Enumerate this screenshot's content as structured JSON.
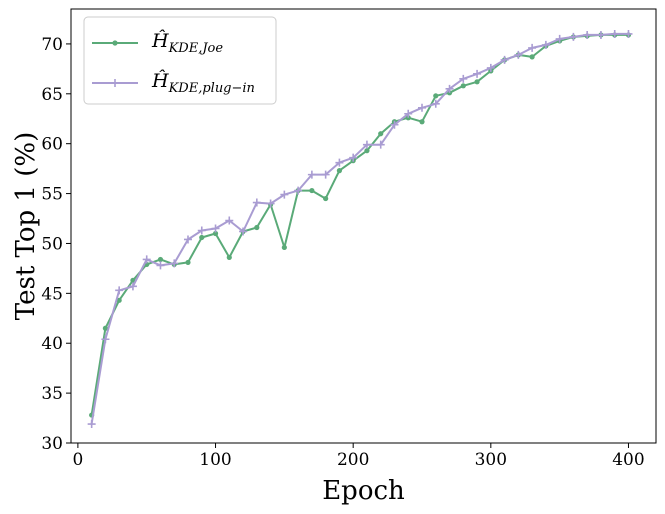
{
  "chart_data": {
    "type": "line",
    "xlabel": "Epoch",
    "ylabel": "Test Top 1 (%)",
    "xlim": [
      -5,
      420
    ],
    "ylim": [
      30,
      73.5
    ],
    "xticks": [
      0,
      100,
      200,
      300,
      400
    ],
    "yticks": [
      30,
      35,
      40,
      45,
      50,
      55,
      60,
      65,
      70
    ],
    "grid": false,
    "legend_position": "top-left",
    "x": [
      10,
      20,
      30,
      40,
      50,
      60,
      70,
      80,
      90,
      100,
      110,
      120,
      130,
      140,
      150,
      160,
      170,
      180,
      190,
      200,
      210,
      220,
      230,
      240,
      250,
      260,
      270,
      280,
      290,
      300,
      310,
      320,
      330,
      340,
      350,
      360,
      370,
      380,
      390,
      400
    ],
    "series": [
      {
        "name": "Ĥ",
        "name_sub": "KDE,Joe",
        "color": "#5aaa78",
        "marker": "dot",
        "values": [
          32.8,
          41.5,
          44.3,
          46.3,
          47.9,
          48.4,
          47.9,
          48.1,
          50.6,
          51.0,
          48.6,
          51.2,
          51.6,
          53.9,
          49.6,
          55.3,
          55.3,
          54.5,
          57.3,
          58.3,
          59.3,
          61.0,
          62.2,
          62.6,
          62.2,
          64.8,
          65.1,
          65.8,
          66.2,
          67.3,
          68.4,
          68.9,
          68.7,
          69.8,
          70.3,
          70.7,
          70.8,
          70.9,
          70.9,
          70.9
        ]
      },
      {
        "name": "Ĥ",
        "name_sub": "KDE,plug−in",
        "color": "#a99cd2",
        "marker": "plus",
        "values": [
          31.9,
          40.4,
          45.3,
          45.7,
          48.4,
          47.8,
          48.0,
          50.4,
          51.3,
          51.5,
          52.3,
          51.2,
          54.1,
          54.0,
          54.9,
          55.3,
          56.9,
          56.9,
          58.1,
          58.6,
          59.9,
          59.9,
          61.9,
          63.0,
          63.6,
          64.0,
          65.5,
          66.5,
          67.0,
          67.6,
          68.4,
          68.9,
          69.6,
          69.9,
          70.5,
          70.7,
          70.9,
          70.9,
          71.0,
          71.0
        ]
      }
    ]
  }
}
